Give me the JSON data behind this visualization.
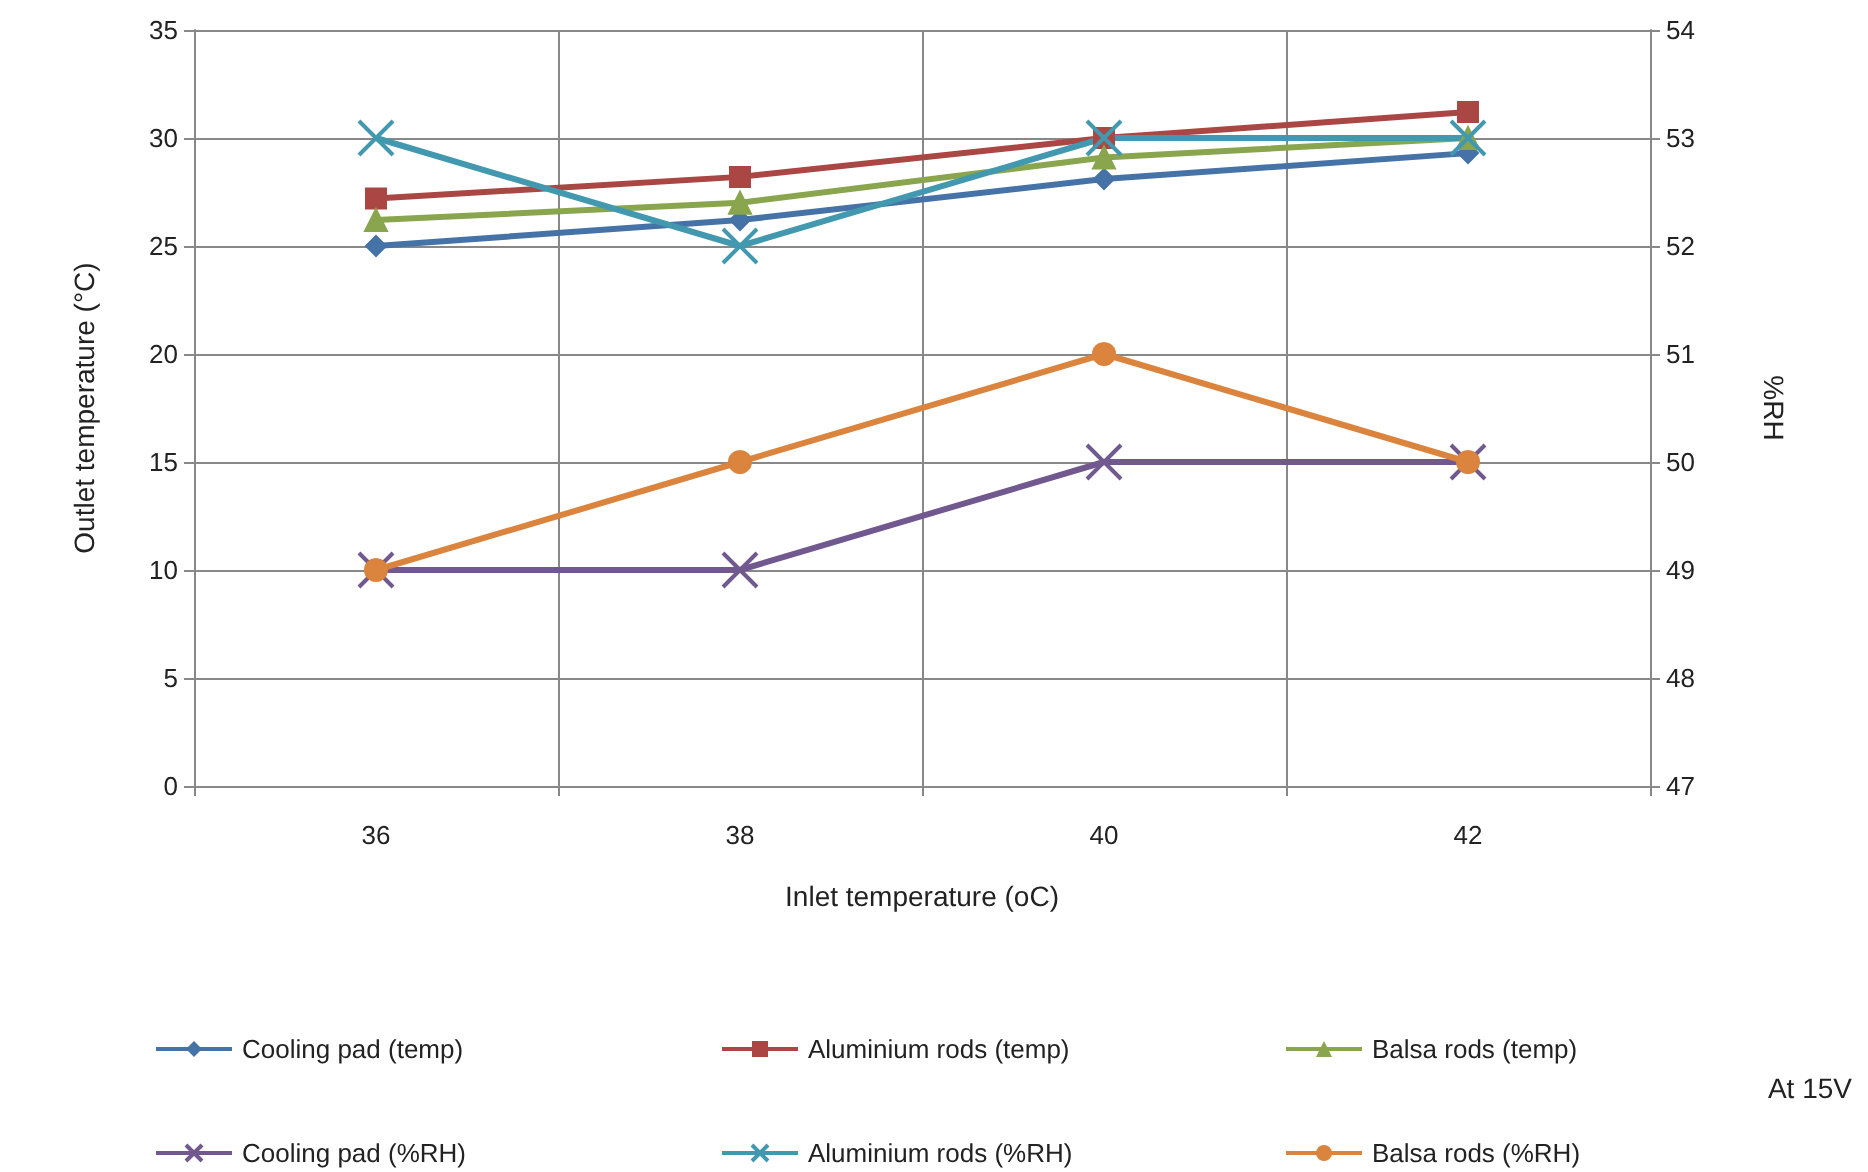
{
  "chart_data": {
    "type": "line",
    "xlabel": "Inlet temperature (oC)",
    "ylabel": "Outlet temperature (°C)",
    "y2label": "%RH",
    "categories": [
      "36",
      "38",
      "40",
      "42"
    ],
    "series": [
      {
        "name": "Cooling pad (temp)",
        "color": "#4572a7",
        "marker": "diamond",
        "values": [
          25,
          26.2,
          28.1,
          29.3
        ]
      },
      {
        "name": "Aluminium rods (temp)",
        "color": "#aa4643",
        "marker": "square",
        "values": [
          27.2,
          28.2,
          30.0,
          31.2
        ]
      },
      {
        "name": "Balsa rods (temp)",
        "color": "#89a54e",
        "marker": "triangle",
        "values": [
          26.2,
          27.0,
          29.1,
          30.0
        ]
      },
      {
        "name": "Cooling pad (%RH)",
        "color": "#71588f",
        "marker": "cross",
        "axis": "y2",
        "values": [
          49,
          49,
          50,
          50
        ]
      },
      {
        "name": "Aluminium rods (%RH)",
        "color": "#4198af",
        "marker": "cross",
        "axis": "y2",
        "values": [
          53,
          52,
          53,
          53
        ]
      },
      {
        "name": "Balsa rods (%RH)",
        "color": "#db843d",
        "marker": "circle",
        "axis": "y2",
        "values": [
          49,
          50,
          51,
          50
        ]
      }
    ],
    "ylim": [
      0,
      35
    ],
    "yticks": [
      0,
      5,
      10,
      15,
      20,
      25,
      30,
      35
    ],
    "y2lim": [
      47,
      54
    ],
    "y2ticks": [
      47,
      48,
      49,
      50,
      51,
      52,
      53,
      54
    ],
    "grid": true,
    "legend": "bottom",
    "annotations": [
      "At 15V"
    ]
  }
}
